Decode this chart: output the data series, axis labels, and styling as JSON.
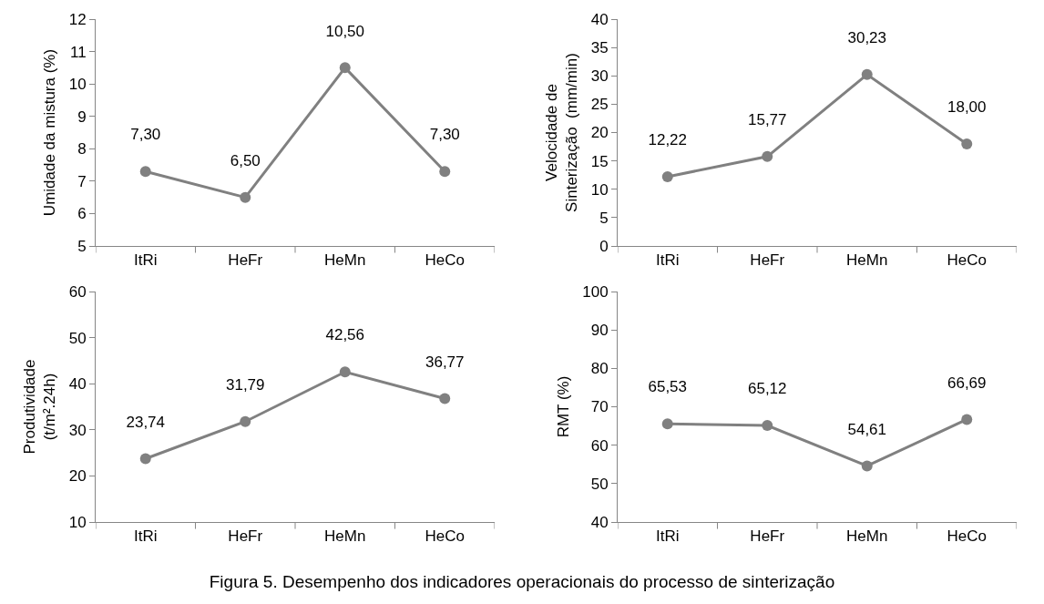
{
  "chart_data": [
    {
      "type": "line",
      "ylabel": "Umidade da mistura (%)",
      "categories": [
        "ItRi",
        "HeFr",
        "HeMn",
        "HeCo"
      ],
      "series": [
        {
          "color": "#808080",
          "values": [
            7.3,
            6.5,
            10.5,
            7.3
          ],
          "value_labels": [
            "7,30",
            "6,50",
            "10,50",
            "7,30"
          ]
        }
      ],
      "ylim": [
        5,
        12
      ],
      "yticks": [
        5,
        6,
        7,
        8,
        9,
        10,
        11,
        12
      ],
      "grid": false,
      "marker": "circle",
      "line_style": "solid"
    },
    {
      "type": "line",
      "ylabel": "Velocidade de\nSinterização  (mm/min)",
      "categories": [
        "ItRi",
        "HeFr",
        "HeMn",
        "HeCo"
      ],
      "series": [
        {
          "color": "#808080",
          "values": [
            12.22,
            15.77,
            30.23,
            18.0
          ],
          "value_labels": [
            "12,22",
            "15,77",
            "30,23",
            "18,00"
          ]
        }
      ],
      "ylim": [
        0,
        40
      ],
      "yticks": [
        0,
        5,
        10,
        15,
        20,
        25,
        30,
        35,
        40
      ],
      "grid": false,
      "marker": "circle",
      "line_style": "solid"
    },
    {
      "type": "line",
      "ylabel": "Produtividade\n(t/m².24h)",
      "categories": [
        "ItRi",
        "HeFr",
        "HeMn",
        "HeCo"
      ],
      "series": [
        {
          "color": "#808080",
          "values": [
            23.74,
            31.79,
            42.56,
            36.77
          ],
          "value_labels": [
            "23,74",
            "31,79",
            "42,56",
            "36,77"
          ]
        }
      ],
      "ylim": [
        10,
        60
      ],
      "yticks": [
        10,
        20,
        30,
        40,
        50,
        60
      ],
      "grid": false,
      "marker": "circle",
      "line_style": "solid"
    },
    {
      "type": "line",
      "ylabel": "RMT (%)",
      "categories": [
        "ItRi",
        "HeFr",
        "HeMn",
        "HeCo"
      ],
      "series": [
        {
          "color": "#808080",
          "values": [
            65.53,
            65.12,
            54.61,
            66.69
          ],
          "value_labels": [
            "65,53",
            "65,12",
            "54,61",
            "66,69"
          ]
        }
      ],
      "ylim": [
        40,
        100
      ],
      "yticks": [
        40,
        50,
        60,
        70,
        80,
        90,
        100
      ],
      "grid": false,
      "marker": "circle",
      "line_style": "solid",
      "annotations": [
        "Figura 5. Desempenho dos indicadores operacionais do processo de sinterização"
      ]
    }
  ]
}
